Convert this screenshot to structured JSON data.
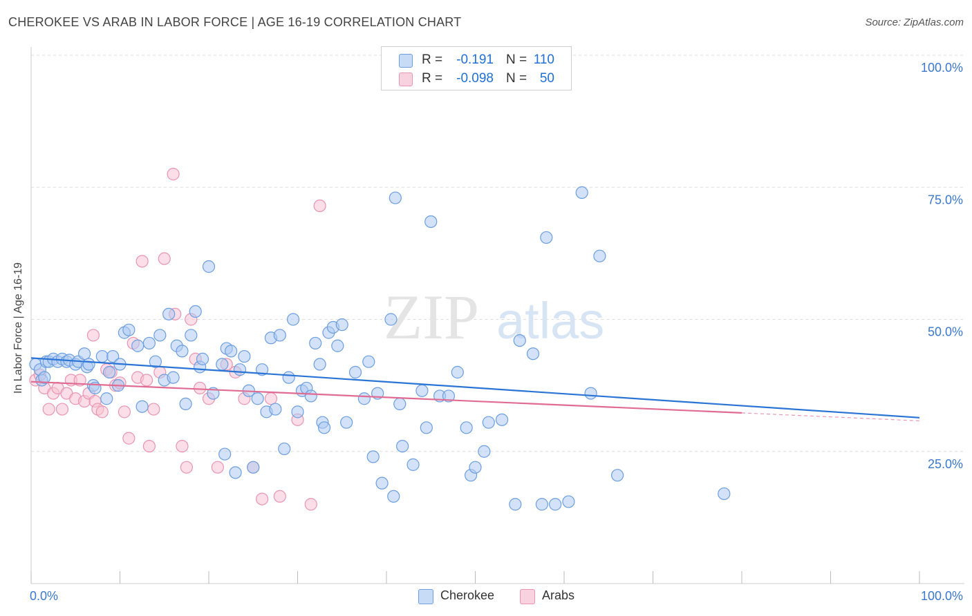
{
  "header": {
    "title": "CHEROKEE VS ARAB IN LABOR FORCE | AGE 16-19 CORRELATION CHART",
    "source": "Source: ZipAtlas.com"
  },
  "watermark": {
    "zip": "ZIP",
    "atlas": "atlas"
  },
  "legend": {
    "rows": [
      {
        "r_label": "R =",
        "r_value": "-0.191",
        "n_label": "N =",
        "n_value": "110",
        "swatch": "#aecbf2"
      },
      {
        "r_label": "R =",
        "r_value": "-0.098",
        "n_label": "N =",
        "n_value": "50",
        "swatch": "#f7c3d3"
      }
    ]
  },
  "bottom_legend": [
    "Cherokee",
    "Arabs"
  ],
  "chart_data": {
    "type": "scatter",
    "title": "CHEROKEE VS ARAB IN LABOR FORCE | AGE 16-19 CORRELATION CHART",
    "xlabel": "",
    "ylabel": "In Labor Force | Age 16-19",
    "xlim": [
      0,
      100
    ],
    "ylim": [
      0,
      100
    ],
    "x_tick_labels": [
      "0.0%",
      "100.0%"
    ],
    "y_ticks": [
      25,
      50,
      75,
      100
    ],
    "y_tick_labels": [
      "25.0%",
      "50.0%",
      "75.0%",
      "100.0%"
    ],
    "grid": true,
    "legend_position": "top-center",
    "colors": {
      "cherokee_fill": "#aecbf2",
      "cherokee_stroke": "#6a9ee0",
      "cherokee_line": "#2a74d5",
      "arabs_fill": "#f7c3d3",
      "arabs_stroke": "#e994b0",
      "arabs_line": "#e06b93",
      "tick_label": "#3a78cc",
      "grid": "#dddddd"
    },
    "series": [
      {
        "name": "Cherokee",
        "r": -0.191,
        "n": 110,
        "trend": {
          "x0": 0,
          "y0": 42.7,
          "x1": 100,
          "y1": 31.4
        },
        "points": [
          [
            0.5,
            41.5
          ],
          [
            1,
            40.5
          ],
          [
            1.2,
            38.5
          ],
          [
            1.5,
            39
          ],
          [
            1.7,
            42
          ],
          [
            2,
            42
          ],
          [
            2.5,
            42.5
          ],
          [
            3,
            42
          ],
          [
            3.5,
            42.5
          ],
          [
            4,
            42
          ],
          [
            4.3,
            42.3
          ],
          [
            5,
            41.5
          ],
          [
            5.3,
            42
          ],
          [
            6,
            43.5
          ],
          [
            6.3,
            41
          ],
          [
            6.5,
            41.5
          ],
          [
            7,
            37.5
          ],
          [
            7.2,
            37
          ],
          [
            8,
            43
          ],
          [
            8.5,
            35
          ],
          [
            8.8,
            40
          ],
          [
            9.2,
            43
          ],
          [
            9.8,
            37.5
          ],
          [
            10,
            41.5
          ],
          [
            10.5,
            47.5
          ],
          [
            11,
            48
          ],
          [
            12,
            45
          ],
          [
            12.5,
            33.5
          ],
          [
            13.3,
            45.5
          ],
          [
            14,
            42
          ],
          [
            14.5,
            47
          ],
          [
            15,
            38.5
          ],
          [
            15.5,
            51
          ],
          [
            16,
            39
          ],
          [
            16.4,
            45
          ],
          [
            17,
            44
          ],
          [
            17.4,
            34
          ],
          [
            18,
            47
          ],
          [
            18.5,
            51.5
          ],
          [
            19,
            41
          ],
          [
            19.3,
            42.5
          ],
          [
            20,
            60
          ],
          [
            20.5,
            36
          ],
          [
            21.5,
            41.5
          ],
          [
            21.8,
            24.5
          ],
          [
            22,
            44.5
          ],
          [
            22.5,
            44
          ],
          [
            23,
            21
          ],
          [
            23.5,
            40.5
          ],
          [
            24,
            43
          ],
          [
            24.5,
            36.5
          ],
          [
            25,
            22
          ],
          [
            25.5,
            35
          ],
          [
            26,
            40.5
          ],
          [
            26.5,
            32.5
          ],
          [
            27,
            46.5
          ],
          [
            27.5,
            33
          ],
          [
            28,
            47
          ],
          [
            28.5,
            25.5
          ],
          [
            29,
            39
          ],
          [
            29.5,
            50
          ],
          [
            30,
            32.5
          ],
          [
            30.5,
            36.5
          ],
          [
            31,
            37
          ],
          [
            31.5,
            35.5
          ],
          [
            32,
            45.5
          ],
          [
            32.5,
            41.5
          ],
          [
            32.8,
            30.5
          ],
          [
            33,
            29.5
          ],
          [
            33.5,
            47.5
          ],
          [
            34,
            48.5
          ],
          [
            34.5,
            45
          ],
          [
            35,
            49
          ],
          [
            35.5,
            30.5
          ],
          [
            36.5,
            40
          ],
          [
            37.5,
            35
          ],
          [
            38,
            42
          ],
          [
            38.5,
            24
          ],
          [
            39,
            36
          ],
          [
            39.5,
            19
          ],
          [
            40.5,
            50
          ],
          [
            40.8,
            16.5
          ],
          [
            41,
            73
          ],
          [
            41.5,
            34
          ],
          [
            41.8,
            26
          ],
          [
            43,
            22.5
          ],
          [
            44,
            36.5
          ],
          [
            44.5,
            29.5
          ],
          [
            45,
            68.5
          ],
          [
            46,
            35.5
          ],
          [
            47,
            35.5
          ],
          [
            48,
            40
          ],
          [
            49,
            29.5
          ],
          [
            49.5,
            20.5
          ],
          [
            50,
            22
          ],
          [
            51,
            25
          ],
          [
            51.5,
            30.5
          ],
          [
            53,
            31
          ],
          [
            54.5,
            15
          ],
          [
            55,
            46
          ],
          [
            56.5,
            43.5
          ],
          [
            57.5,
            15
          ],
          [
            58,
            65.5
          ],
          [
            59,
            15
          ],
          [
            60.5,
            15.5
          ],
          [
            62,
            74
          ],
          [
            63,
            36
          ],
          [
            64,
            62
          ],
          [
            66,
            20.5
          ],
          [
            78,
            17
          ]
        ]
      },
      {
        "name": "Arabs",
        "r": -0.098,
        "n": 50,
        "trend": {
          "x0": 0,
          "y0": 38.2,
          "x1": 80,
          "y1": 32.3,
          "dash_to_x": 100,
          "dash_to_y": 30.8
        },
        "points": [
          [
            0.5,
            38.5
          ],
          [
            1,
            39.5
          ],
          [
            1.5,
            37
          ],
          [
            2,
            33
          ],
          [
            2.5,
            36
          ],
          [
            3,
            37
          ],
          [
            3.5,
            33
          ],
          [
            4,
            36
          ],
          [
            4.5,
            38.5
          ],
          [
            5,
            35
          ],
          [
            5.5,
            38.5
          ],
          [
            6,
            34.5
          ],
          [
            6.5,
            36
          ],
          [
            7,
            47
          ],
          [
            7.2,
            34.5
          ],
          [
            7.5,
            33
          ],
          [
            8,
            32.5
          ],
          [
            8.5,
            40.5
          ],
          [
            9,
            40
          ],
          [
            9.5,
            37.5
          ],
          [
            10,
            38
          ],
          [
            10.5,
            32.5
          ],
          [
            11,
            27.5
          ],
          [
            11.5,
            45.5
          ],
          [
            12,
            39
          ],
          [
            12.5,
            61
          ],
          [
            13,
            38.5
          ],
          [
            13.3,
            26
          ],
          [
            13.8,
            33
          ],
          [
            14.5,
            40
          ],
          [
            15,
            61.5
          ],
          [
            16,
            77.5
          ],
          [
            16.2,
            51
          ],
          [
            17,
            26
          ],
          [
            17.5,
            22
          ],
          [
            18,
            50
          ],
          [
            18.5,
            42.5
          ],
          [
            19,
            37
          ],
          [
            20,
            35
          ],
          [
            21,
            22
          ],
          [
            22,
            41.5
          ],
          [
            23,
            40
          ],
          [
            24,
            35
          ],
          [
            25,
            22
          ],
          [
            26,
            16
          ],
          [
            27,
            35
          ],
          [
            28,
            16.5
          ],
          [
            30,
            31
          ],
          [
            31.5,
            15
          ],
          [
            32.5,
            71.5
          ]
        ]
      }
    ]
  }
}
